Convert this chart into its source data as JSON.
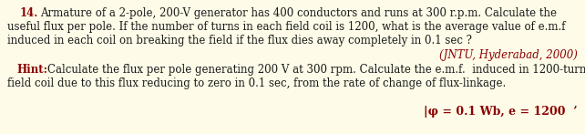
{
  "bg_color": "#FEFCE8",
  "number_color": "#8B0000",
  "number_text": "14.",
  "main_line1_indent": "   Armature of a 2-pole, 200-V generator has 400 conductors and runs at 300 r.p.m. Calculate the",
  "main_line2": "useful flux per pole. If the number of turns in each field coil is 1200, what is the average value of e.m.f",
  "main_line3": "induced in each coil on breaking the field if the flux dies away completely in 0.1 sec ?",
  "source_text": "(JNTU, Hyderabad, 2000)",
  "source_color": "#8B0000",
  "hint_label": "Hint:",
  "hint_label_color": "#8B0000",
  "hint_text_line1": " Calculate the flux per pole generating 200 V at 300 rpm. Calculate the e.m.f.  induced in 1200-turn",
  "hint_text_line2": "field coil due to this flux reducing to zero in 0.1 sec, from the rate of change of flux-linkage.",
  "answer_text": "|φ = 0.1 Wb, e = 1200  ’",
  "answer_color": "#8B0000",
  "text_color": "#1a1a1a",
  "font_size": 8.5
}
